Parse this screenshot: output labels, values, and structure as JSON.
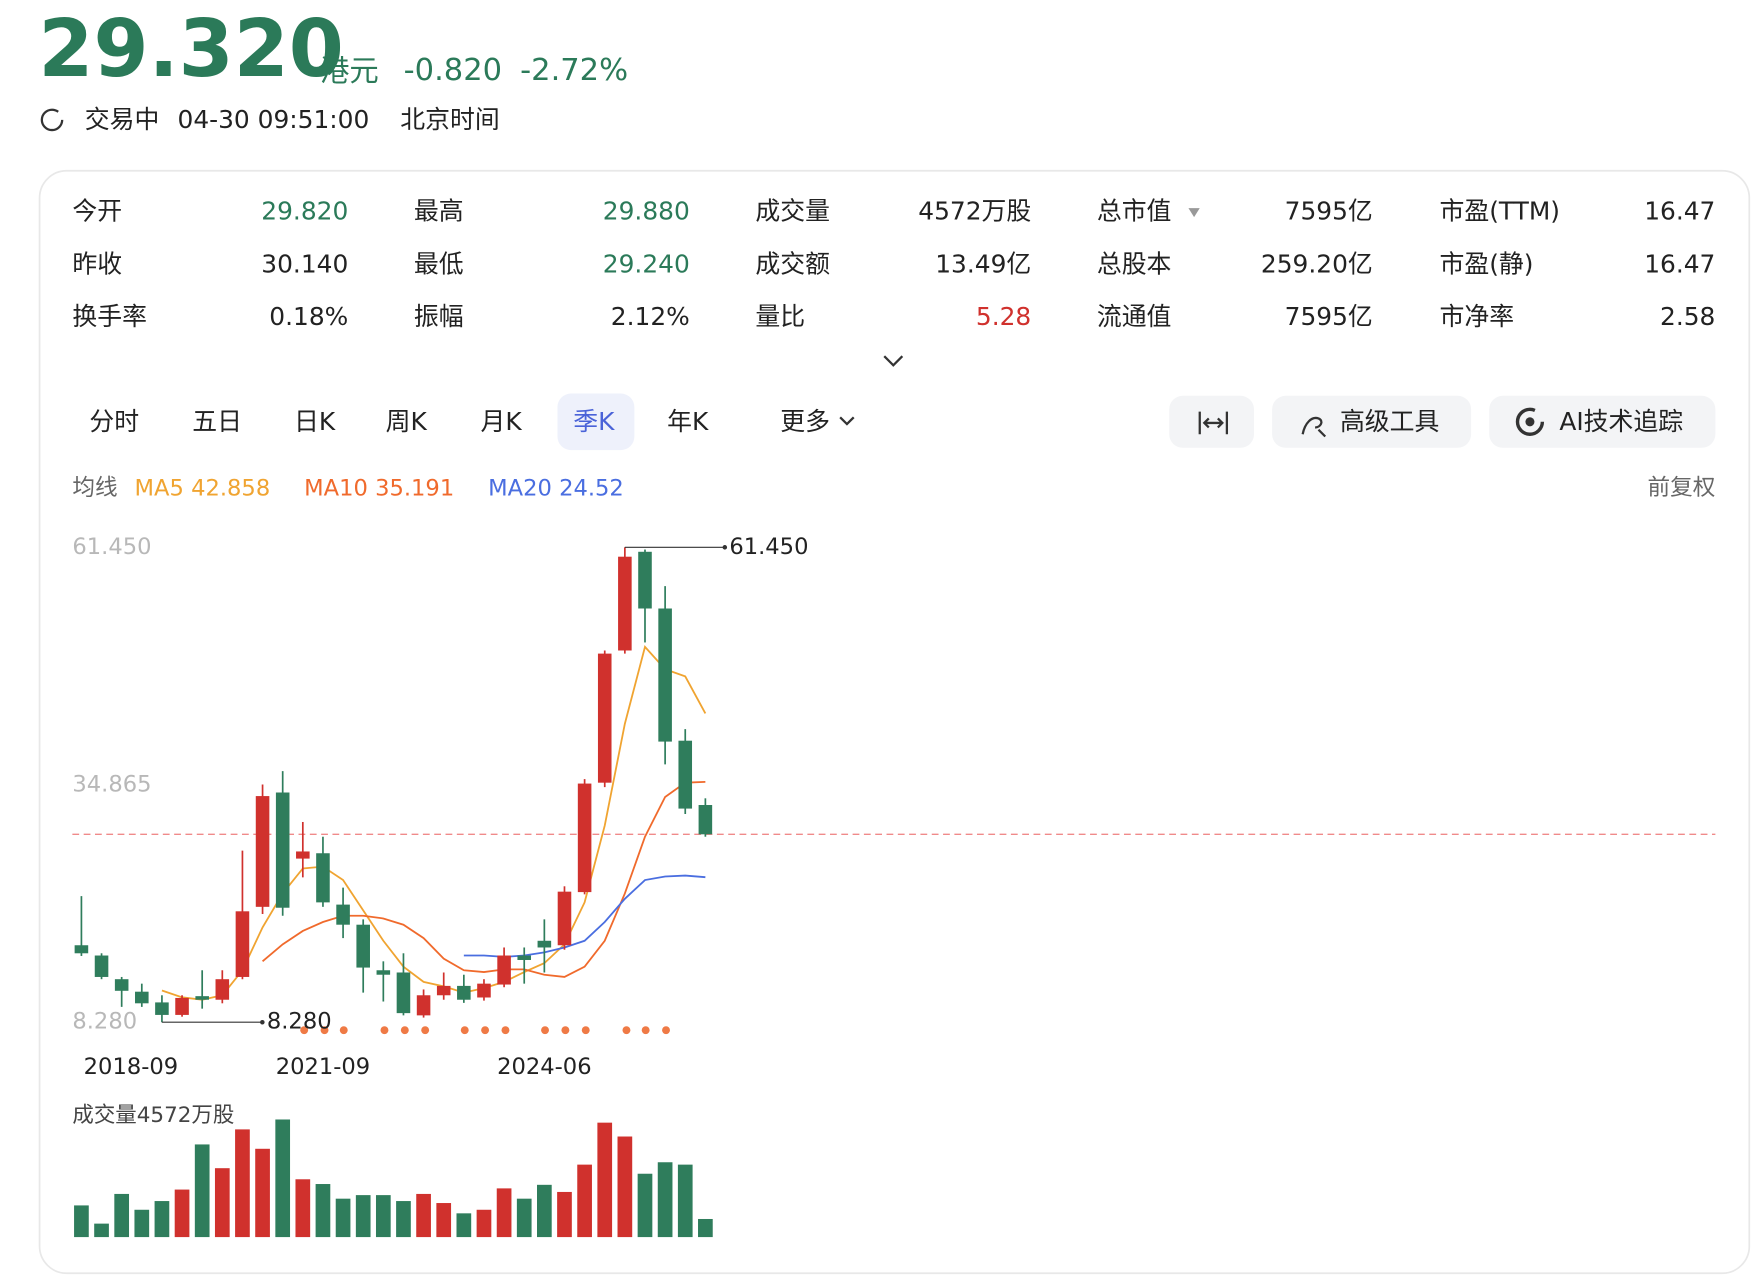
{
  "quote": {
    "price": "29.320",
    "currency": "港元",
    "change": "-0.820",
    "change_pct": "-2.72%",
    "status": "交易中",
    "time": "04-30 09:51:00",
    "timezone": "北京时间",
    "color": "#2b7a59"
  },
  "stats": [
    [
      {
        "label": "今开",
        "value": "29.820",
        "color": "#2b7a59"
      },
      {
        "label": "最高",
        "value": "29.880",
        "color": "#2b7a59"
      },
      {
        "label": "成交量",
        "value": "4572万股"
      },
      {
        "label": "总市值",
        "value": "7595亿"
      },
      {
        "label": "市盈(TTM)",
        "value": "16.47"
      }
    ],
    [
      {
        "label": "昨收",
        "value": "30.140"
      },
      {
        "label": "最低",
        "value": "29.240",
        "color": "#2b7a59"
      },
      {
        "label": "成交额",
        "value": "13.49亿"
      },
      {
        "label": "总股本",
        "value": "259.20亿"
      },
      {
        "label": "市盈(静)",
        "value": "16.47"
      }
    ],
    [
      {
        "label": "换手率",
        "value": "0.18%"
      },
      {
        "label": "振幅",
        "value": "2.12%"
      },
      {
        "label": "量比",
        "value": "5.28",
        "color": "#d0312d"
      },
      {
        "label": "流通值",
        "value": "7595亿"
      },
      {
        "label": "市净率",
        "value": "2.58"
      }
    ]
  ],
  "tabs": [
    "分时",
    "五日",
    "日K",
    "周K",
    "月K",
    "季K",
    "年K",
    "更多"
  ],
  "active_tab": 5,
  "tools": [
    "高级工具",
    "AI技术追踪"
  ],
  "ma_label": "均线",
  "adjust": "前复权",
  "volume_label": "成交量4572万股",
  "chart_data": {
    "type": "candlestick",
    "up_color": "#d0312d",
    "down_color": "#2f7d5c",
    "categories": [
      "2018-09",
      null,
      null,
      null,
      null,
      null,
      null,
      null,
      null,
      null,
      null,
      null,
      "2021-09",
      null,
      null,
      null,
      null,
      null,
      null,
      null,
      null,
      null,
      null,
      "2024-06",
      null,
      null,
      null,
      null,
      null,
      null,
      null,
      null
    ],
    "open": [
      16.9,
      15.75,
      13.1,
      11.7,
      10.5,
      9.1,
      11.2,
      10.8,
      13.35,
      21.2,
      34.0,
      26.6,
      27.2,
      21.45,
      19.2,
      14.1,
      13.85,
      9.05,
      11.3,
      12.35,
      11.05,
      12.5,
      15.75,
      17.4,
      16.9,
      22.85,
      35.1,
      49.9,
      60.95,
      54.6,
      39.8,
      32.6
    ],
    "high": [
      22.4,
      16.0,
      13.35,
      12.6,
      11.3,
      11.3,
      14.1,
      14.1,
      27.5,
      34.9,
      36.4,
      30.7,
      29.05,
      23.35,
      19.8,
      15.1,
      16.0,
      11.95,
      13.85,
      13.6,
      13.1,
      16.65,
      16.65,
      19.8,
      23.5,
      35.5,
      49.9,
      61.45,
      61.2,
      57.1,
      41.1,
      33.35
    ],
    "low": [
      15.7,
      13.1,
      10.0,
      10.0,
      8.28,
      8.9,
      9.8,
      10.4,
      13.1,
      20.4,
      20.2,
      24.5,
      21.2,
      17.7,
      11.6,
      10.6,
      9.05,
      8.8,
      10.8,
      10.45,
      10.7,
      12.2,
      12.6,
      13.85,
      16.4,
      22.6,
      34.6,
      49.55,
      50.8,
      37.15,
      31.6,
      29.05
    ],
    "close": [
      16.0,
      13.35,
      11.8,
      10.4,
      9.1,
      11.0,
      10.8,
      13.1,
      20.7,
      33.6,
      21.1,
      27.4,
      21.7,
      19.2,
      14.4,
      13.6,
      9.3,
      11.3,
      12.35,
      10.8,
      12.6,
      15.75,
      15.25,
      16.65,
      22.9,
      35.0,
      49.55,
      60.4,
      54.6,
      39.7,
      32.2,
      29.32
    ],
    "series": [
      {
        "name": "MA5",
        "color": "#f0a431",
        "values": [
          null,
          null,
          null,
          null,
          11.83,
          11.07,
          10.8,
          11.3,
          14.1,
          18.9,
          22.7,
          25.5,
          25.7,
          24.2,
          20.8,
          17.4,
          14.5,
          12.8,
          12.3,
          11.6,
          12.1,
          12.8,
          13.9,
          14.9,
          17.0,
          21.7,
          30.3,
          41.7,
          50.3,
          47.8,
          47.0,
          42.858
        ]
      },
      {
        "name": "MA10",
        "color": "#f06a2c",
        "values": [
          null,
          null,
          null,
          null,
          null,
          null,
          null,
          null,
          null,
          15.1,
          17.0,
          18.5,
          19.5,
          20.2,
          20.2,
          19.9,
          19.2,
          17.7,
          15.4,
          14.1,
          13.9,
          14.2,
          14.2,
          13.6,
          13.35,
          14.5,
          17.4,
          22.7,
          29.05,
          33.5,
          35.1,
          35.191
        ]
      },
      {
        "name": "MA20",
        "color": "#4a6ee0",
        "values": [
          null,
          null,
          null,
          null,
          null,
          null,
          null,
          null,
          null,
          null,
          null,
          null,
          null,
          null,
          null,
          null,
          null,
          null,
          null,
          15.75,
          15.75,
          15.6,
          15.75,
          16.1,
          16.65,
          17.4,
          19.5,
          22.1,
          24.2,
          24.6,
          24.7,
          24.52
        ]
      }
    ],
    "volume": [
      8000,
      3400,
      10900,
      6900,
      9100,
      12000,
      23400,
      17400,
      27200,
      22300,
      29700,
      14600,
      13400,
      9700,
      10600,
      10600,
      9100,
      10900,
      8600,
      6000,
      6900,
      12300,
      9700,
      13200,
      11400,
      18300,
      28900,
      25400,
      16000,
      18900,
      18300,
      4572
    ],
    "ylim": [
      8.28,
      61.45
    ],
    "yticks": [
      {
        "value": 61.45,
        "label": "61.450"
      },
      {
        "value": 34.865,
        "label": "34.865"
      },
      {
        "value": 8.28,
        "label": "8.280"
      }
    ]
  }
}
